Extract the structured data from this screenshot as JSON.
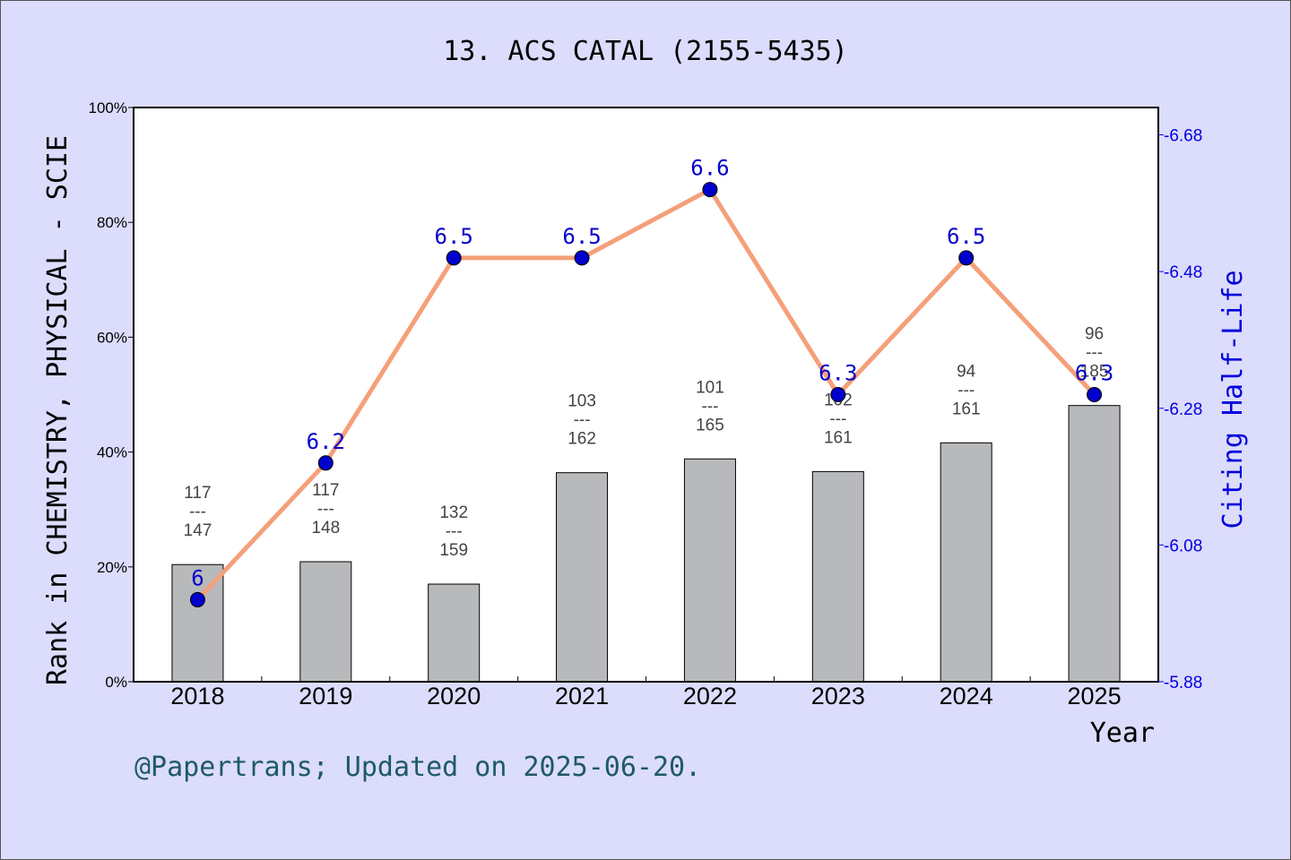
{
  "title": "13. ACS CATAL (2155-5435)",
  "footer": "@Papertrans; Updated on 2025-06-20.",
  "colors": {
    "background": "#dcdcfc",
    "bar": "#b8b9bb",
    "line": "#f4a07a",
    "marker": "#0000cc",
    "right_axis": "#0000dd",
    "footer": "#1e5a66"
  },
  "chart_data": {
    "type": "bar",
    "xlabel": "Year",
    "ylabel": "Rank in CHEMISTRY, PHYSICAL - SCIE",
    "y2label": "Citing Half-Life",
    "categories": [
      "2018",
      "2019",
      "2020",
      "2021",
      "2022",
      "2023",
      "2024",
      "2025"
    ],
    "ylim": [
      0,
      100
    ],
    "yticks": [
      "0%",
      "20%",
      "40%",
      "60%",
      "80%",
      "100%"
    ],
    "y2lim": [
      5.88,
      6.72
    ],
    "y2ticks": [
      "5.88",
      "6.08",
      "6.28",
      "6.48",
      "6.68"
    ],
    "rank": [
      117,
      117,
      132,
      103,
      101,
      102,
      94,
      96
    ],
    "total": [
      147,
      148,
      159,
      162,
      165,
      161,
      161,
      185
    ],
    "bar_percent": [
      20.4,
      20.9,
      17.0,
      36.4,
      38.8,
      36.6,
      41.6,
      48.1
    ],
    "fraction_sep": "---",
    "half_life": [
      6.0,
      6.2,
      6.5,
      6.5,
      6.6,
      6.3,
      6.5,
      6.3
    ],
    "half_life_labels": [
      "6",
      "6.2",
      "6.5",
      "6.5",
      "6.6",
      "6.3",
      "6.5",
      "6.3"
    ],
    "grid": false
  }
}
